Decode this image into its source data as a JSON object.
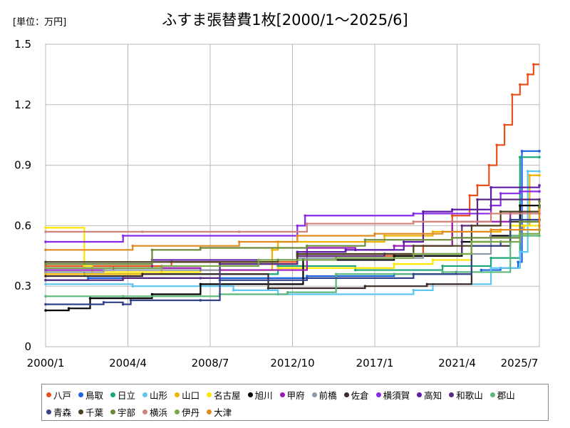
{
  "chart_data": {
    "type": "line",
    "title": "ふすま張替費1枚[2000/1～2025/6]",
    "unit_label": "[単位：万円]",
    "xlabel": "",
    "ylabel": "",
    "x_ticks": [
      "2000/1",
      "2004/4",
      "2008/7",
      "2012/10",
      "2017/1",
      "2021/4",
      "2025/7"
    ],
    "y_ticks": [
      "0",
      "0.3",
      "0.6",
      "0.9",
      "1.2",
      "1.5"
    ],
    "ylim": [
      0,
      1.5
    ],
    "xlim": [
      2000.0,
      2025.5
    ],
    "grid": true,
    "legend_position": "bottom",
    "series": [
      {
        "name": "八戸",
        "color": "#e8501c",
        "points": [
          [
            2000.0,
            0.4
          ],
          [
            2006.5,
            0.42
          ],
          [
            2013.0,
            0.45
          ],
          [
            2019.5,
            0.5
          ],
          [
            2021.0,
            0.65
          ],
          [
            2021.9,
            0.75
          ],
          [
            2022.3,
            0.8
          ],
          [
            2022.9,
            0.9
          ],
          [
            2023.3,
            1.0
          ],
          [
            2023.7,
            1.1
          ],
          [
            2024.1,
            1.25
          ],
          [
            2024.5,
            1.3
          ],
          [
            2024.9,
            1.35
          ],
          [
            2025.2,
            1.4
          ]
        ]
      },
      {
        "name": "鳥取",
        "color": "#1a62e0",
        "points": [
          [
            2000.0,
            0.33
          ],
          [
            2002.2,
            0.34
          ],
          [
            2008.0,
            0.34
          ],
          [
            2013.5,
            0.35
          ],
          [
            2018.0,
            0.36
          ],
          [
            2021.2,
            0.37
          ],
          [
            2022.5,
            0.38
          ],
          [
            2023.5,
            0.39
          ],
          [
            2024.4,
            0.42
          ],
          [
            2024.6,
            0.97
          ],
          [
            2025.5,
            0.97
          ]
        ]
      },
      {
        "name": "日立",
        "color": "#1aa67a",
        "points": [
          [
            2000.0,
            0.37
          ],
          [
            2002.0,
            0.36
          ],
          [
            2012.0,
            0.4
          ],
          [
            2016.0,
            0.38
          ],
          [
            2020.5,
            0.4
          ],
          [
            2023.0,
            0.44
          ],
          [
            2024.5,
            0.94
          ],
          [
            2025.5,
            0.94
          ]
        ]
      },
      {
        "name": "山形",
        "color": "#5ec6f0",
        "points": [
          [
            2000.0,
            0.31
          ],
          [
            2004.5,
            0.3
          ],
          [
            2009.7,
            0.28
          ],
          [
            2012.0,
            0.26
          ],
          [
            2019.0,
            0.28
          ],
          [
            2020.0,
            0.31
          ],
          [
            2023.0,
            0.39
          ],
          [
            2024.5,
            0.47
          ],
          [
            2024.9,
            0.87
          ],
          [
            2025.5,
            0.87
          ]
        ]
      },
      {
        "name": "山口",
        "color": "#f0b400",
        "points": [
          [
            2000.0,
            0.36
          ],
          [
            2006.0,
            0.38
          ],
          [
            2011.7,
            0.48
          ],
          [
            2012.0,
            0.52
          ],
          [
            2017.5,
            0.55
          ],
          [
            2020.0,
            0.57
          ],
          [
            2023.5,
            0.58
          ],
          [
            2024.7,
            0.6
          ],
          [
            2025.0,
            0.85
          ],
          [
            2025.5,
            0.85
          ]
        ]
      },
      {
        "name": "名古屋",
        "color": "#ffe600",
        "points": [
          [
            2000.0,
            0.59
          ],
          [
            2002.0,
            0.4
          ],
          [
            2002.4,
            0.37
          ],
          [
            2008.0,
            0.38
          ],
          [
            2012.0,
            0.39
          ],
          [
            2018.0,
            0.41
          ],
          [
            2020.0,
            0.43
          ],
          [
            2022.0,
            0.52
          ],
          [
            2024.0,
            0.6
          ],
          [
            2025.5,
            0.66
          ]
        ]
      },
      {
        "name": "旭川",
        "color": "#000000",
        "points": [
          [
            2000.0,
            0.18
          ],
          [
            2001.2,
            0.19
          ],
          [
            2002.3,
            0.24
          ],
          [
            2005.5,
            0.26
          ],
          [
            2008.0,
            0.31
          ],
          [
            2013.3,
            0.43
          ],
          [
            2018.0,
            0.45
          ],
          [
            2021.5,
            0.52
          ],
          [
            2023.0,
            0.55
          ],
          [
            2024.5,
            0.7
          ],
          [
            2025.5,
            0.7
          ]
        ]
      },
      {
        "name": "甲府",
        "color": "#9b1ab5",
        "points": [
          [
            2000.0,
            0.38
          ],
          [
            2003.5,
            0.39
          ],
          [
            2008.0,
            0.38
          ],
          [
            2013.5,
            0.49
          ],
          [
            2016.0,
            0.48
          ],
          [
            2018.0,
            0.5
          ],
          [
            2021.0,
            0.62
          ],
          [
            2024.0,
            0.66
          ],
          [
            2025.5,
            0.66
          ]
        ]
      },
      {
        "name": "前橋",
        "color": "#8c98a8",
        "points": [
          [
            2000.0,
            0.37
          ],
          [
            2003.0,
            0.38
          ],
          [
            2009.0,
            0.41
          ],
          [
            2013.0,
            0.44
          ],
          [
            2019.5,
            0.46
          ],
          [
            2023.0,
            0.58
          ],
          [
            2025.5,
            0.6
          ]
        ]
      },
      {
        "name": "佐倉",
        "color": "#3a2a28",
        "points": [
          [
            2000.0,
            0.35
          ],
          [
            2005.0,
            0.36
          ],
          [
            2011.5,
            0.29
          ],
          [
            2016.5,
            0.3
          ],
          [
            2019.7,
            0.31
          ],
          [
            2022.0,
            0.5
          ],
          [
            2024.0,
            0.62
          ],
          [
            2025.5,
            0.63
          ]
        ]
      },
      {
        "name": "横須賀",
        "color": "#8a2ae6",
        "points": [
          [
            2000.0,
            0.52
          ],
          [
            2004.0,
            0.55
          ],
          [
            2013.0,
            0.6
          ],
          [
            2013.4,
            0.65
          ],
          [
            2019.0,
            0.66
          ],
          [
            2023.0,
            0.7
          ],
          [
            2023.5,
            0.76
          ],
          [
            2024.5,
            0.77
          ],
          [
            2025.5,
            0.77
          ]
        ]
      },
      {
        "name": "高知",
        "color": "#5f1ca8",
        "points": [
          [
            2000.0,
            0.39
          ],
          [
            2005.5,
            0.43
          ],
          [
            2013.0,
            0.47
          ],
          [
            2015.5,
            0.48
          ],
          [
            2018.5,
            0.52
          ],
          [
            2019.5,
            0.67
          ],
          [
            2021.0,
            0.68
          ],
          [
            2023.0,
            0.79
          ],
          [
            2025.5,
            0.8
          ]
        ]
      },
      {
        "name": "和歌山",
        "color": "#5a2a80",
        "points": [
          [
            2000.0,
            0.33
          ],
          [
            2004.0,
            0.34
          ],
          [
            2009.0,
            0.41
          ],
          [
            2013.0,
            0.45
          ],
          [
            2017.5,
            0.46
          ],
          [
            2021.5,
            0.6
          ],
          [
            2022.3,
            0.73
          ],
          [
            2025.5,
            0.73
          ]
        ]
      },
      {
        "name": "郡山",
        "color": "#5ab87a",
        "points": [
          [
            2000.0,
            0.25
          ],
          [
            2004.0,
            0.25
          ],
          [
            2009.0,
            0.26
          ],
          [
            2012.5,
            0.27
          ],
          [
            2015.0,
            0.36
          ],
          [
            2020.5,
            0.37
          ],
          [
            2024.0,
            0.55
          ],
          [
            2025.5,
            0.55
          ]
        ]
      },
      {
        "name": "青森",
        "color": "#34428a",
        "points": [
          [
            2000.0,
            0.21
          ],
          [
            2003.0,
            0.22
          ],
          [
            2004.0,
            0.21
          ],
          [
            2004.4,
            0.23
          ],
          [
            2008.0,
            0.23
          ],
          [
            2009.0,
            0.33
          ],
          [
            2013.5,
            0.34
          ],
          [
            2019.0,
            0.36
          ],
          [
            2022.0,
            0.5
          ],
          [
            2023.5,
            0.52
          ],
          [
            2024.0,
            0.63
          ],
          [
            2025.5,
            0.63
          ]
        ]
      },
      {
        "name": "千葉",
        "color": "#4a4020",
        "points": [
          [
            2000.0,
            0.42
          ],
          [
            2005.5,
            0.42
          ],
          [
            2012.0,
            0.43
          ],
          [
            2013.0,
            0.46
          ],
          [
            2019.0,
            0.5
          ],
          [
            2022.0,
            0.6
          ],
          [
            2023.5,
            0.67
          ],
          [
            2025.5,
            0.69
          ]
        ]
      },
      {
        "name": "宇部",
        "color": "#6a8a3a",
        "points": [
          [
            2000.0,
            0.41
          ],
          [
            2005.5,
            0.48
          ],
          [
            2008.0,
            0.49
          ],
          [
            2013.5,
            0.5
          ],
          [
            2016.5,
            0.53
          ],
          [
            2021.0,
            0.54
          ],
          [
            2024.5,
            0.62
          ],
          [
            2025.5,
            0.72
          ]
        ]
      },
      {
        "name": "横浜",
        "color": "#d0847a",
        "points": [
          [
            2000.0,
            0.57
          ],
          [
            2005.0,
            0.57
          ],
          [
            2010.0,
            0.57
          ],
          [
            2013.5,
            0.61
          ],
          [
            2019.0,
            0.62
          ],
          [
            2023.0,
            0.66
          ],
          [
            2025.5,
            0.66
          ]
        ]
      },
      {
        "name": "伊丹",
        "color": "#7aa848",
        "points": [
          [
            2000.0,
            0.39
          ],
          [
            2006.0,
            0.4
          ],
          [
            2011.0,
            0.43
          ],
          [
            2015.0,
            0.44
          ],
          [
            2019.0,
            0.46
          ],
          [
            2022.0,
            0.52
          ],
          [
            2024.5,
            0.56
          ],
          [
            2025.5,
            0.58
          ]
        ]
      },
      {
        "name": "大津",
        "color": "#e08a20",
        "points": [
          [
            2000.0,
            0.48
          ],
          [
            2004.5,
            0.5
          ],
          [
            2010.0,
            0.52
          ],
          [
            2013.0,
            0.55
          ],
          [
            2017.0,
            0.56
          ],
          [
            2020.5,
            0.57
          ],
          [
            2023.0,
            0.58
          ],
          [
            2025.5,
            0.68
          ]
        ]
      }
    ]
  }
}
